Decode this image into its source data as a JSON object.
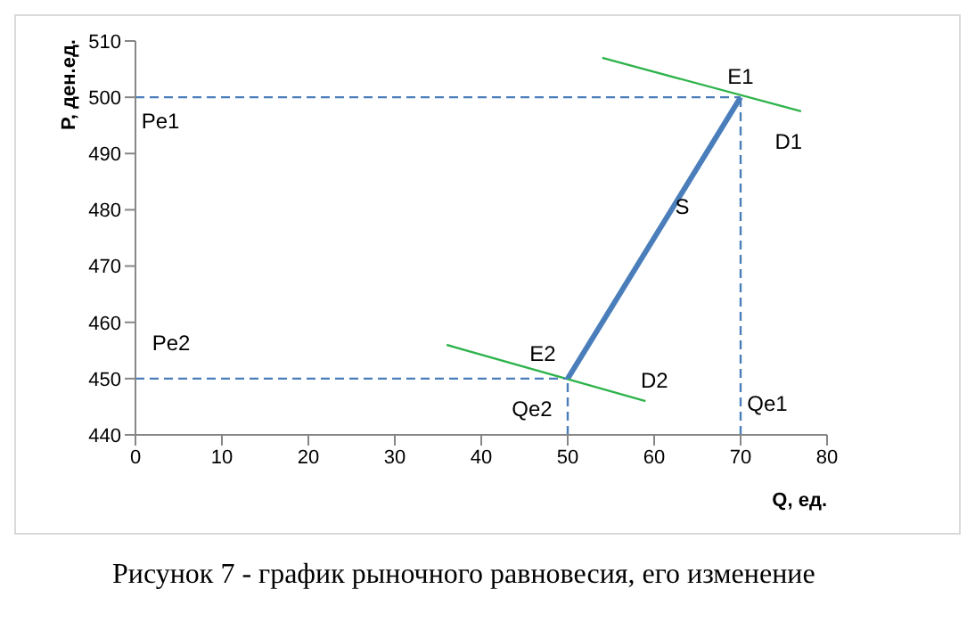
{
  "chart_data": {
    "type": "line",
    "xlabel": "Q, ед.",
    "ylabel": "P, ден.ед.",
    "xlim": [
      0,
      80
    ],
    "xticks": [
      0,
      10,
      20,
      30,
      40,
      50,
      60,
      70,
      80
    ],
    "ylim": [
      440,
      510
    ],
    "yticks": [
      440,
      450,
      460,
      470,
      480,
      490,
      500,
      510
    ],
    "series": [
      {
        "color": "#4a7ebb",
        "x": [
          50,
          70
        ],
        "values": [
          450,
          500
        ]
      },
      {
        "color": "#2eb34b",
        "x": [
          54,
          77
        ],
        "values": [
          507,
          497.5
        ]
      },
      {
        "color": "#2eb34b",
        "x": [
          36,
          59
        ],
        "values": [
          456,
          446
        ]
      },
      {
        "color": "#4a7ebb",
        "line_style": "dashed",
        "x": [
          0,
          70
        ],
        "values": [
          500,
          500
        ]
      },
      {
        "color": "#4a7ebb",
        "line_style": "dashed",
        "x": [
          70,
          70
        ],
        "values": [
          440,
          500
        ]
      },
      {
        "color": "#4a7ebb",
        "line_style": "dashed",
        "x": [
          0,
          50
        ],
        "values": [
          450,
          450
        ]
      },
      {
        "color": "#4a7ebb",
        "line_style": "dashed",
        "x": [
          50,
          50
        ],
        "values": [
          440,
          450
        ]
      }
    ],
    "annotations": [
      {
        "text": "E1",
        "x": 70,
        "y": 500
      },
      {
        "text": "E2",
        "x": 50,
        "y": 450
      },
      {
        "text": "D1",
        "x": 77,
        "y": 497.5
      },
      {
        "text": "D2",
        "x": 59,
        "y": 446
      },
      {
        "text": "Pe1",
        "x": 0,
        "y": 500
      },
      {
        "text": "Pe2",
        "x": 0,
        "y": 450
      },
      {
        "text": "Qe1",
        "x": 70,
        "y": 440
      },
      {
        "text": "Qe2",
        "x": 50,
        "y": 440
      },
      {
        "text": "S",
        "x": 62,
        "y": 480
      },
      "Рисунок 7 - график рыночного равновесия, его изменение"
    ]
  }
}
